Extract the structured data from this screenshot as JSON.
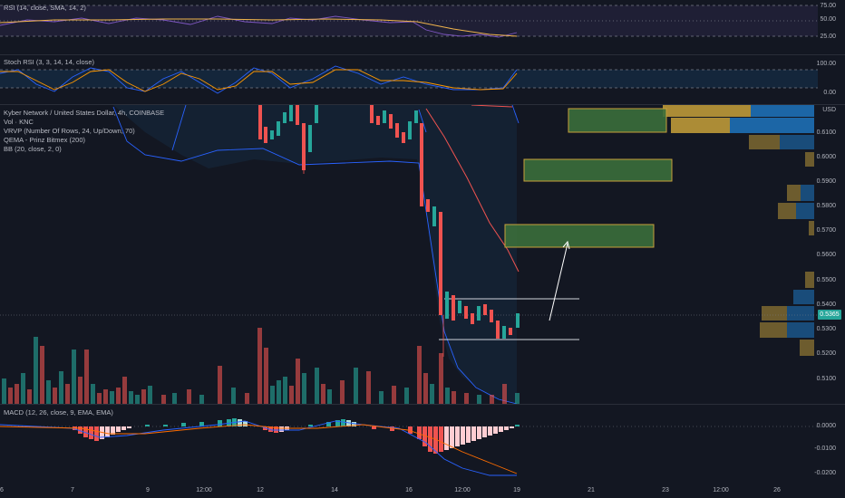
{
  "legends": {
    "rsi": "RSI (14, close, SMA, 14, 2)",
    "stoch": "Stoch RSI (3, 3, 14, 14, close)",
    "main": [
      "Kyber Network / United States Dollar, 4h, COINBASE",
      "Vol · KNC",
      "VRVP (Number Of Rows, 24, Up/Down, 70)",
      "QEMA - Prinz Bitmex (200)",
      "BB (20, close, 2, 0)"
    ],
    "macd": "MACD (12, 26, close, 9, EMA, EMA)"
  },
  "axes": {
    "rsi": [
      "75.00",
      "50.00",
      "25.00"
    ],
    "stoch": [
      "100.00",
      "0.00"
    ],
    "currency": "USD",
    "price": [
      "0.6100",
      "0.6000",
      "0.5900",
      "0.5800",
      "0.5700",
      "0.5600",
      "0.5500",
      "0.5400",
      "0.5300",
      "0.5200",
      "0.5100"
    ],
    "last_price": "0.5365",
    "macd": [
      "0.0000",
      "-0.0100",
      "-0.0200"
    ],
    "time": [
      "6",
      "7",
      "9",
      "12:00",
      "12",
      "14",
      "16",
      "12:00",
      "19",
      "21",
      "23",
      "12:00",
      "26"
    ]
  },
  "colors": {
    "up": "#26a69a",
    "down": "#ef5350",
    "bg": "#131722",
    "zone": "#3b6e3b",
    "zone_border": "#c8a13a"
  }
}
